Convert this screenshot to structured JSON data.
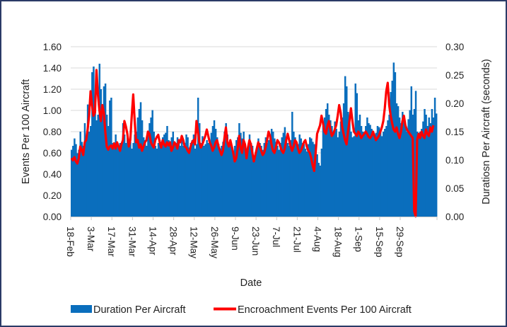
{
  "chart_data": {
    "type": "bar+line",
    "title": "",
    "xlabel": "Date",
    "ylabel_left": "Events Per 100 Aircraft",
    "ylabel_right": "Duratiosn Per Aircraft (seconds)",
    "ylim_left": [
      0,
      1.6
    ],
    "ylim_right": [
      0,
      0.3
    ],
    "yticks_left": [
      "0.00",
      "0.20",
      "0.40",
      "0.60",
      "0.80",
      "1.00",
      "1.20",
      "1.40",
      "1.60"
    ],
    "yticks_right": [
      "0.00",
      "0.05",
      "0.10",
      "0.15",
      "0.20",
      "0.25",
      "0.30"
    ],
    "grid": true,
    "legend_position": "bottom",
    "start_date": "18-Feb",
    "x_tick_labels": [
      "18-Feb",
      "3-Mar",
      "17-Mar",
      "31-Mar",
      "14-Apr",
      "28-Apr",
      "12-May",
      "26-May",
      "9-Jun",
      "23-Jun",
      "7-Jul",
      "21-Jul",
      "4-Aug",
      "18-Aug",
      "1-Sep",
      "15-Sep",
      "29-Sep"
    ],
    "x_tick_interval_days": 14,
    "series": [
      {
        "name": "Duration Per Aircraft",
        "kind": "bar",
        "axis": "right",
        "color": "#0a6ebd",
        "values": [
          0.118,
          0.125,
          0.138,
          0.128,
          0.112,
          0.118,
          0.15,
          0.132,
          0.125,
          0.165,
          0.138,
          0.198,
          0.15,
          0.16,
          0.255,
          0.265,
          0.185,
          0.17,
          0.18,
          0.27,
          0.225,
          0.195,
          0.23,
          0.235,
          0.18,
          0.16,
          0.205,
          0.21,
          0.13,
          0.125,
          0.145,
          0.128,
          0.12,
          0.13,
          0.125,
          0.165,
          0.145,
          0.13,
          0.14,
          0.128,
          0.132,
          0.12,
          0.13,
          0.145,
          0.15,
          0.175,
          0.19,
          0.202,
          0.17,
          0.14,
          0.135,
          0.125,
          0.145,
          0.165,
          0.175,
          0.188,
          0.15,
          0.125,
          0.12,
          0.13,
          0.135,
          0.132,
          0.14,
          0.145,
          0.148,
          0.16,
          0.135,
          0.125,
          0.14,
          0.15,
          0.128,
          0.13,
          0.14,
          0.132,
          0.125,
          0.138,
          0.125,
          0.13,
          0.145,
          0.14,
          0.122,
          0.13,
          0.135,
          0.145,
          0.12,
          0.128,
          0.21,
          0.165,
          0.13,
          0.142,
          0.125,
          0.128,
          0.135,
          0.13,
          0.132,
          0.148,
          0.16,
          0.17,
          0.155,
          0.14,
          0.128,
          0.12,
          0.125,
          0.132,
          0.15,
          0.165,
          0.145,
          0.13,
          0.128,
          0.12,
          0.115,
          0.125,
          0.135,
          0.14,
          0.165,
          0.148,
          0.138,
          0.15,
          0.128,
          0.108,
          0.12,
          0.145,
          0.13,
          0.125,
          0.1,
          0.11,
          0.12,
          0.138,
          0.13,
          0.125,
          0.118,
          0.13,
          0.14,
          0.13,
          0.135,
          0.145,
          0.155,
          0.15,
          0.138,
          0.132,
          0.125,
          0.118,
          0.13,
          0.14,
          0.148,
          0.158,
          0.14,
          0.13,
          0.125,
          0.135,
          0.185,
          0.15,
          0.14,
          0.13,
          0.128,
          0.145,
          0.138,
          0.13,
          0.128,
          0.12,
          0.115,
          0.128,
          0.14,
          0.138,
          0.132,
          0.128,
          0.12,
          0.11,
          0.095,
          0.09,
          0.12,
          0.16,
          0.175,
          0.19,
          0.2,
          0.18,
          0.17,
          0.16,
          0.15,
          0.168,
          0.155,
          0.14,
          0.15,
          0.168,
          0.175,
          0.2,
          0.248,
          0.23,
          0.185,
          0.168,
          0.15,
          0.14,
          0.142,
          0.235,
          0.218,
          0.17,
          0.18,
          0.16,
          0.15,
          0.148,
          0.16,
          0.175,
          0.165,
          0.162,
          0.155,
          0.15,
          0.145,
          0.148,
          0.16,
          0.158,
          0.15,
          0.142,
          0.15,
          0.155,
          0.16,
          0.17,
          0.18,
          0.22,
          0.24,
          0.272,
          0.255,
          0.2,
          0.195,
          0.175,
          0.165,
          0.185,
          0.17,
          0.16,
          0.15,
          0.172,
          0.188,
          0.23,
          0.18,
          0.19,
          0.222,
          0.15,
          0.14,
          0.15,
          0.155,
          0.168,
          0.19,
          0.18,
          0.16,
          0.175,
          0.165,
          0.19,
          0.175,
          0.21,
          0.182
        ]
      },
      {
        "name": "Encroachment Events Per 100 Aircraft",
        "kind": "line",
        "axis": "left",
        "color": "#ff0000",
        "values": [
          0.55,
          0.53,
          0.56,
          0.52,
          0.5,
          0.55,
          0.66,
          0.63,
          0.58,
          0.7,
          0.72,
          0.82,
          0.95,
          1.18,
          1.05,
          0.95,
          0.98,
          1.38,
          1.15,
          1.0,
          0.9,
          1.05,
          0.98,
          0.8,
          0.66,
          0.63,
          0.66,
          0.67,
          0.64,
          0.69,
          0.64,
          0.7,
          0.66,
          0.62,
          0.68,
          0.72,
          0.9,
          0.85,
          0.78,
          0.66,
          0.72,
          0.95,
          1.15,
          0.9,
          0.7,
          0.72,
          0.65,
          0.68,
          0.62,
          0.66,
          0.7,
          0.72,
          0.8,
          0.78,
          0.7,
          0.67,
          0.65,
          0.72,
          0.75,
          0.77,
          0.7,
          0.65,
          0.72,
          0.68,
          0.66,
          0.7,
          0.67,
          0.7,
          0.62,
          0.65,
          0.7,
          0.68,
          0.64,
          0.72,
          0.7,
          0.76,
          0.72,
          0.66,
          0.65,
          0.62,
          0.6,
          0.66,
          0.7,
          0.72,
          0.68,
          0.9,
          0.8,
          0.7,
          0.65,
          0.68,
          0.72,
          0.76,
          0.82,
          0.76,
          0.7,
          0.67,
          0.62,
          0.65,
          0.7,
          0.72,
          0.66,
          0.62,
          0.58,
          0.62,
          0.74,
          0.84,
          0.7,
          0.66,
          0.72,
          0.66,
          0.6,
          0.52,
          0.55,
          0.64,
          0.76,
          0.65,
          0.6,
          0.72,
          0.68,
          0.55,
          0.65,
          0.72,
          0.68,
          0.6,
          0.52,
          0.58,
          0.64,
          0.7,
          0.66,
          0.62,
          0.58,
          0.6,
          0.65,
          0.72,
          0.8,
          0.76,
          0.68,
          0.62,
          0.6,
          0.65,
          0.72,
          0.7,
          0.66,
          0.62,
          0.6,
          0.64,
          0.72,
          0.78,
          0.72,
          0.66,
          0.62,
          0.66,
          0.72,
          0.7,
          0.64,
          0.6,
          0.62,
          0.66,
          0.7,
          0.72,
          0.66,
          0.62,
          0.6,
          0.55,
          0.48,
          0.43,
          0.6,
          0.78,
          0.82,
          0.86,
          0.95,
          0.88,
          0.8,
          0.78,
          0.85,
          0.9,
          0.82,
          0.76,
          0.78,
          0.82,
          0.86,
          0.95,
          1.05,
          0.98,
          0.85,
          0.78,
          0.72,
          0.68,
          0.8,
          0.9,
          1.02,
          0.9,
          0.8,
          0.78,
          0.76,
          0.8,
          0.78,
          0.74,
          0.76,
          0.78,
          0.8,
          0.78,
          0.75,
          0.74,
          0.76,
          0.8,
          0.76,
          0.72,
          0.74,
          0.76,
          0.8,
          0.84,
          0.9,
          1.02,
          1.18,
          1.26,
          1.05,
          0.95,
          0.88,
          0.82,
          0.8,
          0.84,
          0.78,
          0.74,
          0.8,
          0.9,
          0.95,
          0.86,
          0.82,
          0.8,
          0.78,
          0.76,
          0.74,
          0.05,
          0.0,
          0.72,
          0.78,
          0.74,
          0.8,
          0.76,
          0.74,
          0.82,
          0.78,
          0.76,
          0.84,
          0.8,
          0.86
        ]
      }
    ]
  },
  "legend": {
    "bar_label": "Duration Per Aircraft",
    "line_label": "Encroachment Events Per 100 Aircraft"
  }
}
